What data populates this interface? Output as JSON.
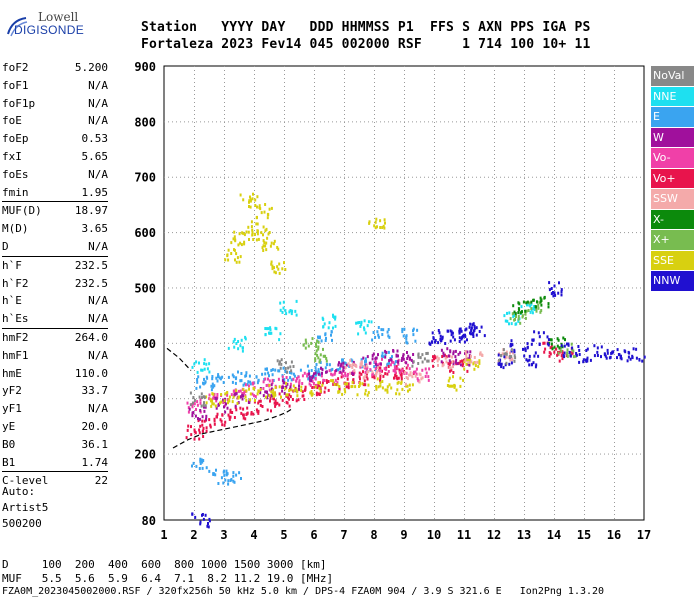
{
  "logo": {
    "line1": "Lowell",
    "line2": "DIGISONDE"
  },
  "header": {
    "row1": "Station   YYYY DAY   DDD HHMMSS P1  FFS S AXN PPS IGA PS",
    "row2": "Fortaleza 2023 Fev14 045 002000 RSF     1 714 100 10+ 11"
  },
  "params": [
    {
      "label": "foF2",
      "value": "5.200"
    },
    {
      "label": "foF1",
      "value": "N/A"
    },
    {
      "label": "foF1p",
      "value": "N/A"
    },
    {
      "label": "foE",
      "value": "N/A"
    },
    {
      "label": "foEp",
      "value": "0.53"
    },
    {
      "label": "fxI",
      "value": "5.65"
    },
    {
      "label": "foEs",
      "value": "N/A"
    },
    {
      "label": "fmin",
      "value": "1.95"
    },
    {
      "sep": true
    },
    {
      "label": "MUF(D)",
      "value": "18.97"
    },
    {
      "label": "M(D)",
      "value": "3.65"
    },
    {
      "label": "D",
      "value": "N/A"
    },
    {
      "sep": true
    },
    {
      "label": "h`F",
      "value": "232.5"
    },
    {
      "label": "h`F2",
      "value": "232.5"
    },
    {
      "label": "h`E",
      "value": "N/A"
    },
    {
      "label": "h`Es",
      "value": "N/A"
    },
    {
      "sep": true
    },
    {
      "label": "hmF2",
      "value": "264.0"
    },
    {
      "label": "hmF1",
      "value": "N/A"
    },
    {
      "label": "hmE",
      "value": "110.0"
    },
    {
      "label": "yF2",
      "value": "33.7"
    },
    {
      "label": "yF1",
      "value": "N/A"
    },
    {
      "label": "yE",
      "value": "20.0"
    },
    {
      "label": "B0",
      "value": "36.1"
    },
    {
      "label": "B1",
      "value": "1.74"
    },
    {
      "sep": true
    },
    {
      "label": "C-level",
      "value": "22"
    }
  ],
  "auto": {
    "line1": "Auto:",
    "line2": "Artist5",
    "line3": "500200"
  },
  "legend": [
    {
      "label": "NoVal",
      "color": "#888888"
    },
    {
      "label": "NNE",
      "color": "#1ee0f0"
    },
    {
      "label": "E",
      "color": "#3aa4f0"
    },
    {
      "label": "W",
      "color": "#a0109c"
    },
    {
      "label": "Vo-",
      "color": "#f040a8"
    },
    {
      "label": "Vo+",
      "color": "#e8144c"
    },
    {
      "label": "SSW",
      "color": "#f4aaaa"
    },
    {
      "label": "X-",
      "color": "#0c8a0c"
    },
    {
      "label": "X+",
      "color": "#78bc50"
    },
    {
      "label": "SSE",
      "color": "#d8d010"
    },
    {
      "label": "NNW",
      "color": "#2010d0"
    }
  ],
  "bottom": {
    "row1": "D     100  200  400  600  800 1000 1500 3000 [km]",
    "row2": "MUF   5.5  5.6  5.9  6.4  7.1  8.2 11.2 19.0 [MHz]",
    "row3": "FZA0M_2023045002000.RSF / 320fx256h 50 kHz 5.0 km / DPS-4 FZA0M 904 / 3.9 S 321.6 E   Ion2Png 1.3.20"
  },
  "chart_data": {
    "type": "scatter",
    "title": "",
    "xlabel": "",
    "ylabel": "",
    "xlim": [
      1,
      17
    ],
    "ylim": [
      80,
      900
    ],
    "x_ticks": [
      "1",
      "2",
      "3",
      "4",
      "5",
      "6",
      "7",
      "8",
      "9",
      "10",
      "11",
      "12",
      "13",
      "14",
      "15",
      "16",
      "17"
    ],
    "y_ticks": [
      "80",
      "200",
      "300",
      "400",
      "500",
      "600",
      "700",
      "800",
      "900"
    ],
    "grid": true,
    "legend_position": "right",
    "series": [
      {
        "name": "E",
        "color": "#3aa4f0",
        "points": [
          [
            2.3,
            330
          ],
          [
            2.8,
            335
          ],
          [
            3.4,
            338
          ],
          [
            4.0,
            340
          ],
          [
            4.6,
            343
          ],
          [
            5.2,
            346
          ],
          [
            5.8,
            350
          ],
          [
            6.3,
            355
          ],
          [
            7.0,
            360
          ],
          [
            7.8,
            365
          ],
          [
            8.5,
            375
          ],
          [
            2.2,
            180
          ],
          [
            2.9,
            160
          ],
          [
            3.3,
            162
          ],
          [
            6.4,
            412
          ],
          [
            8.2,
            420
          ],
          [
            9.2,
            415
          ]
        ]
      },
      {
        "name": "NNE",
        "color": "#1ee0f0",
        "points": [
          [
            2.2,
            360
          ],
          [
            3.4,
            400
          ],
          [
            4.6,
            420
          ],
          [
            5.1,
            465
          ],
          [
            6.5,
            440
          ],
          [
            7.6,
            430
          ],
          [
            12.6,
            448
          ],
          [
            13.1,
            463
          ]
        ]
      },
      {
        "name": "Vo+",
        "color": "#e8144c",
        "points": [
          [
            2.0,
            240
          ],
          [
            2.4,
            255
          ],
          [
            2.9,
            265
          ],
          [
            3.4,
            275
          ],
          [
            3.9,
            285
          ],
          [
            4.4,
            290
          ],
          [
            4.9,
            300
          ],
          [
            5.4,
            308
          ],
          [
            5.9,
            316
          ],
          [
            6.4,
            322
          ],
          [
            7.0,
            330
          ],
          [
            7.5,
            338
          ],
          [
            8.0,
            345
          ],
          [
            8.6,
            350
          ],
          [
            9.0,
            348
          ],
          [
            10.2,
            370
          ],
          [
            10.8,
            360
          ],
          [
            13.9,
            390
          ],
          [
            14.3,
            380
          ]
        ]
      },
      {
        "name": "Vo-",
        "color": "#f040a8",
        "points": [
          [
            2.0,
            290
          ],
          [
            2.7,
            300
          ],
          [
            3.3,
            310
          ],
          [
            3.9,
            318
          ],
          [
            4.5,
            325
          ],
          [
            5.2,
            330
          ],
          [
            5.8,
            335
          ],
          [
            6.5,
            342
          ],
          [
            7.1,
            350
          ],
          [
            7.8,
            356
          ],
          [
            8.4,
            362
          ],
          [
            8.9,
            360
          ],
          [
            9.6,
            345
          ]
        ]
      },
      {
        "name": "W",
        "color": "#a0109c",
        "points": [
          [
            2.1,
            275
          ],
          [
            2.9,
            290
          ],
          [
            3.6,
            300
          ],
          [
            4.4,
            315
          ],
          [
            5.2,
            322
          ],
          [
            6.1,
            345
          ],
          [
            7.0,
            355
          ],
          [
            7.9,
            370
          ],
          [
            8.6,
            380
          ],
          [
            9.0,
            375
          ],
          [
            10.5,
            380
          ],
          [
            10.9,
            375
          ]
        ]
      },
      {
        "name": "SSE",
        "color": "#d8d010",
        "points": [
          [
            3.3,
            560
          ],
          [
            3.5,
            590
          ],
          [
            3.9,
            610
          ],
          [
            4.2,
            600
          ],
          [
            4.5,
            580
          ],
          [
            4.8,
            540
          ],
          [
            3.8,
            660
          ],
          [
            4.3,
            640
          ],
          [
            2.6,
            300
          ],
          [
            3.2,
            305
          ],
          [
            3.9,
            310
          ],
          [
            4.6,
            315
          ],
          [
            5.3,
            318
          ],
          [
            6.1,
            320
          ],
          [
            6.8,
            322
          ],
          [
            7.5,
            320
          ],
          [
            8.3,
            325
          ],
          [
            9.0,
            320
          ],
          [
            8.1,
            620
          ],
          [
            10.7,
            330
          ],
          [
            11.2,
            360
          ]
        ]
      },
      {
        "name": "X+",
        "color": "#78bc50",
        "points": [
          [
            5.9,
            400
          ],
          [
            6.2,
            380
          ],
          [
            12.8,
            450
          ],
          [
            13.3,
            470
          ],
          [
            14.4,
            390
          ]
        ]
      },
      {
        "name": "X-",
        "color": "#0c8a0c",
        "points": [
          [
            12.9,
            465
          ],
          [
            13.5,
            478
          ],
          [
            14.1,
            400
          ]
        ]
      },
      {
        "name": "SSW",
        "color": "#f4aaaa",
        "points": [
          [
            7.3,
            360
          ],
          [
            7.9,
            350
          ],
          [
            9.3,
            340
          ],
          [
            10.3,
            365
          ],
          [
            11.3,
            375
          ],
          [
            12.3,
            380
          ]
        ]
      },
      {
        "name": "NNW",
        "color": "#2010d0",
        "points": [
          [
            10.1,
            410
          ],
          [
            10.4,
            413
          ],
          [
            10.8,
            416
          ],
          [
            11.1,
            420
          ],
          [
            11.4,
            428
          ],
          [
            12.4,
            370
          ],
          [
            12.8,
            395
          ],
          [
            13.2,
            372
          ],
          [
            13.5,
            410
          ],
          [
            14.0,
            500
          ],
          [
            14.5,
            390
          ],
          [
            15.0,
            380
          ],
          [
            15.6,
            385
          ],
          [
            16.1,
            378
          ],
          [
            16.7,
            380
          ],
          [
            2.2,
            82
          ]
        ]
      },
      {
        "name": "NoVal",
        "color": "#888888",
        "points": [
          [
            2.1,
            300
          ],
          [
            5.0,
            360
          ],
          [
            9.5,
            372
          ],
          [
            12.4,
            378
          ]
        ]
      }
    ],
    "traces": {
      "lower_curve": [
        [
          1.3,
          210
        ],
        [
          1.8,
          225
        ],
        [
          2.3,
          236
        ],
        [
          3.0,
          244
        ],
        [
          3.7,
          252
        ],
        [
          4.3,
          259
        ],
        [
          4.8,
          268
        ],
        [
          5.1,
          275
        ],
        [
          5.3,
          282
        ]
      ],
      "upper_curve": [
        [
          1.1,
          390
        ],
        [
          1.5,
          373
        ],
        [
          1.9,
          350
        ]
      ]
    }
  }
}
